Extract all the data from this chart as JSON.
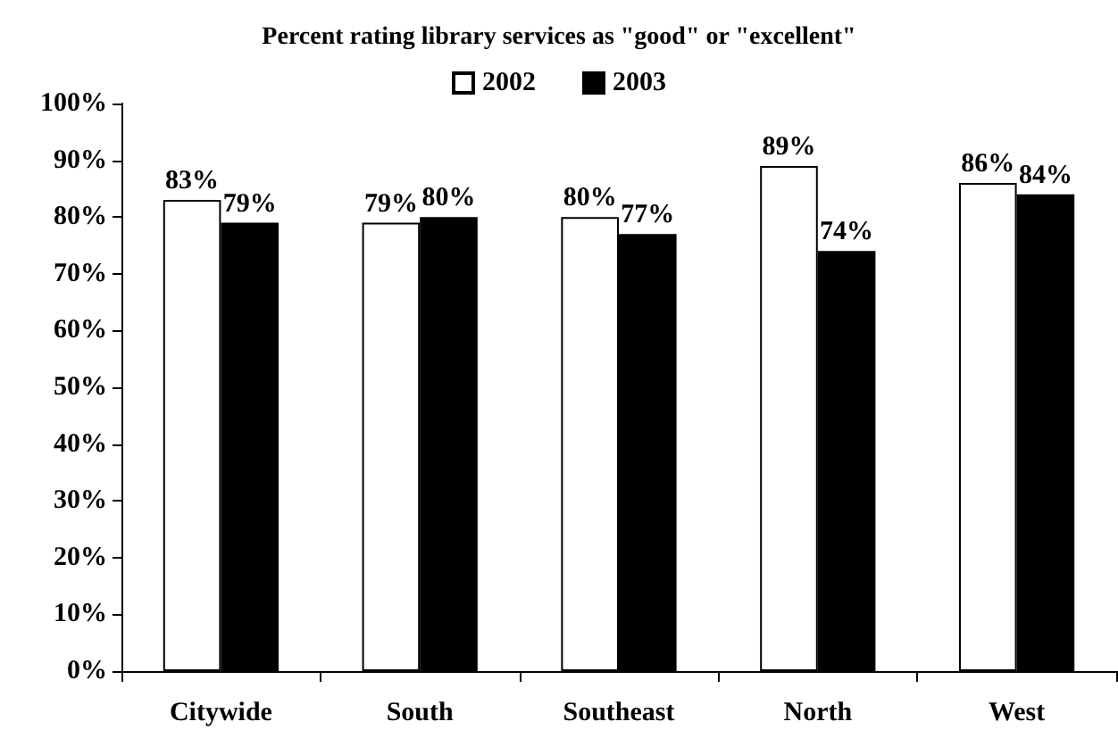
{
  "chart_data": {
    "type": "bar",
    "title": "Percent rating library services as \"good\" or \"excellent\"",
    "categories": [
      "Citywide",
      "South",
      "Southeast",
      "North",
      "West"
    ],
    "series": [
      {
        "name": "2002",
        "color": "#ffffff",
        "values": [
          83,
          79,
          80,
          89,
          86
        ],
        "value_labels": [
          "83%",
          "79%",
          "80%",
          "89%",
          "86%"
        ]
      },
      {
        "name": "2003",
        "color": "#000000",
        "values": [
          79,
          80,
          77,
          74,
          84
        ],
        "value_labels": [
          "79%",
          "80%",
          "77%",
          "74%",
          "84%"
        ]
      }
    ],
    "ylim": [
      0,
      100
    ],
    "yticks": [
      {
        "value": 0,
        "label": "0%"
      },
      {
        "value": 10,
        "label": "10%"
      },
      {
        "value": 20,
        "label": "20%"
      },
      {
        "value": 30,
        "label": "30%"
      },
      {
        "value": 40,
        "label": "40%"
      },
      {
        "value": 50,
        "label": "50%"
      },
      {
        "value": 60,
        "label": "60%"
      },
      {
        "value": 70,
        "label": "70%"
      },
      {
        "value": 80,
        "label": "80%"
      },
      {
        "value": 90,
        "label": "90%"
      },
      {
        "value": 100,
        "label": "100%"
      }
    ],
    "grid": false,
    "legend": "top"
  }
}
